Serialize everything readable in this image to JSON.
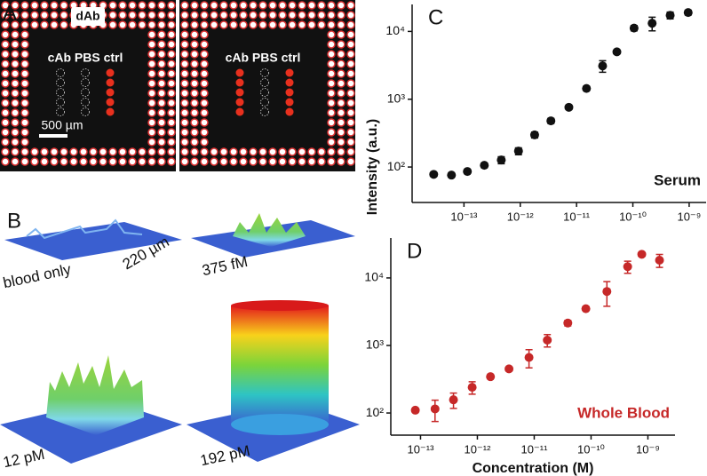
{
  "panel_a": {
    "label": "A",
    "top_label": "dAb",
    "column_labels": [
      "cAb PBS ctrl",
      "cAb PBS ctrl"
    ],
    "scale_bar": "500 µm"
  },
  "panel_b": {
    "label": "B",
    "captions": [
      "blood only",
      "375 fM",
      "12 pM",
      "192 pM"
    ],
    "scale": "220 µm"
  },
  "chart_data": [
    {
      "type": "scatter",
      "label": "C",
      "annotation": "Serum",
      "ylabel": "Intensity (a.u.)",
      "log_x": true,
      "log_y": true,
      "color": "#111111",
      "x": [
        2.9e-14,
        6e-14,
        1.15e-13,
        2.3e-13,
        4.6e-13,
        9.3e-13,
        1.8e-12,
        3.5e-12,
        7.3e-12,
        1.5e-11,
        2.9e-11,
        5.2e-11,
        1.05e-10,
        2.2e-10,
        4.6e-10,
        9.6e-10
      ],
      "values": [
        78,
        76,
        86,
        106,
        127,
        172,
        298,
        480,
        760,
        1440,
        3100,
        5000,
        11200,
        13200,
        17300,
        19000
      ],
      "errors": [
        5,
        5,
        5,
        8,
        15,
        20,
        30,
        40,
        50,
        100,
        600,
        300,
        1000,
        3000,
        2000,
        1500
      ],
      "xlim": [
        1.2e-14,
        2e-09
      ],
      "ylim": [
        30,
        25000
      ],
      "xticks": [
        {
          "value": 1e-13,
          "label": "10⁻¹³"
        },
        {
          "value": 1e-12,
          "label": "10⁻¹²"
        },
        {
          "value": 1e-11,
          "label": "10⁻¹¹"
        },
        {
          "value": 1e-10,
          "label": "10⁻¹⁰"
        },
        {
          "value": 1e-09,
          "label": "10⁻⁹"
        }
      ],
      "yticks": [
        {
          "value": 100,
          "label": "10²"
        },
        {
          "value": 1000,
          "label": "10³"
        },
        {
          "value": 10000,
          "label": "10⁴"
        }
      ]
    },
    {
      "type": "scatter",
      "label": "D",
      "annotation": "Whole Blood",
      "xlabel": "Concentration (M)",
      "log_x": true,
      "log_y": true,
      "color": "#c62828",
      "x": [
        8.1e-14,
        1.8e-13,
        3.8e-13,
        8.1e-13,
        1.7e-12,
        3.6e-12,
        8.1e-12,
        1.7e-11,
        3.9e-11,
        8.1e-11,
        1.9e-10,
        4.4e-10,
        7.8e-10,
        1.6e-09
      ],
      "values": [
        110,
        115,
        157,
        240,
        345,
        450,
        665,
        1200,
        2150,
        3500,
        6300,
        14700,
        22400,
        18300
      ],
      "errors": [
        5,
        40,
        40,
        50,
        20,
        30,
        200,
        250,
        200,
        200,
        2500,
        3000,
        1000,
        4000
      ],
      "xlim": [
        3e-14,
        3e-09
      ],
      "ylim": [
        47,
        39000
      ],
      "xticks": [
        {
          "value": 1e-13,
          "label": "10⁻¹³"
        },
        {
          "value": 1e-12,
          "label": "10⁻¹²"
        },
        {
          "value": 1e-11,
          "label": "10⁻¹¹"
        },
        {
          "value": 1e-10,
          "label": "10⁻¹⁰"
        },
        {
          "value": 1e-09,
          "label": "10⁻⁹"
        }
      ],
      "yticks": [
        {
          "value": 100,
          "label": "10²"
        },
        {
          "value": 1000,
          "label": "10³"
        },
        {
          "value": 10000,
          "label": "10⁴"
        }
      ]
    }
  ]
}
